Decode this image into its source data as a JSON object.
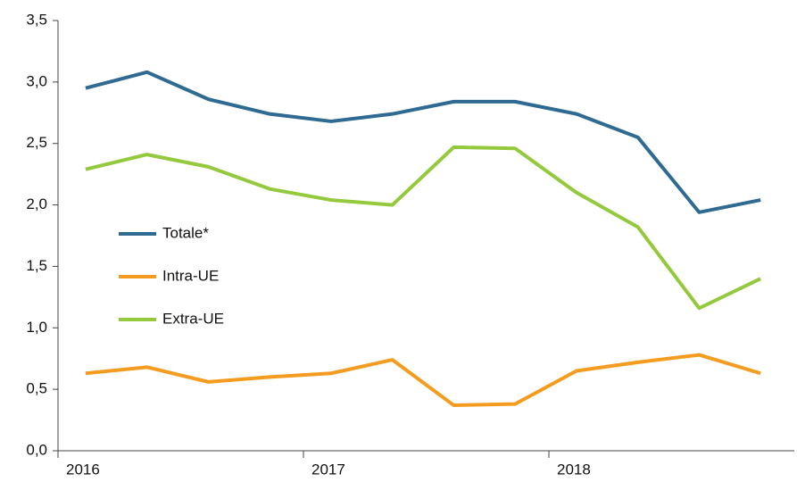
{
  "chart_data": {
    "type": "line",
    "categories": [
      "2016",
      null,
      null,
      null,
      "2017",
      null,
      null,
      null,
      "2018",
      null,
      null,
      null
    ],
    "series": [
      {
        "name": "Totale*",
        "color": "#2e6a91",
        "values": [
          2.95,
          3.08,
          2.86,
          2.74,
          2.68,
          2.74,
          2.84,
          2.84,
          2.74,
          2.55,
          1.94,
          2.04
        ]
      },
      {
        "name": "Intra-UE",
        "color": "#f39c1f",
        "values": [
          0.63,
          0.68,
          0.56,
          0.6,
          0.63,
          0.74,
          0.37,
          0.38,
          0.65,
          0.72,
          0.78,
          0.63
        ]
      },
      {
        "name": "Extra-UE",
        "color": "#95c93d",
        "values": [
          2.29,
          2.41,
          2.31,
          2.13,
          2.04,
          2.0,
          2.47,
          2.46,
          2.1,
          1.82,
          1.16,
          1.4
        ]
      }
    ],
    "ylim": [
      0,
      3.5
    ],
    "yticks": [
      {
        "value": 0,
        "label": "0,0"
      },
      {
        "value": 0.5,
        "label": "0,5"
      },
      {
        "value": 1,
        "label": "1,0"
      },
      {
        "value": 1.5,
        "label": "1,5"
      },
      {
        "value": 2,
        "label": "2,0"
      },
      {
        "value": 2.5,
        "label": "2,5"
      },
      {
        "value": 3,
        "label": "3,0"
      },
      {
        "value": 3.5,
        "label": "3,5"
      }
    ],
    "grid": false,
    "legend": "left"
  }
}
